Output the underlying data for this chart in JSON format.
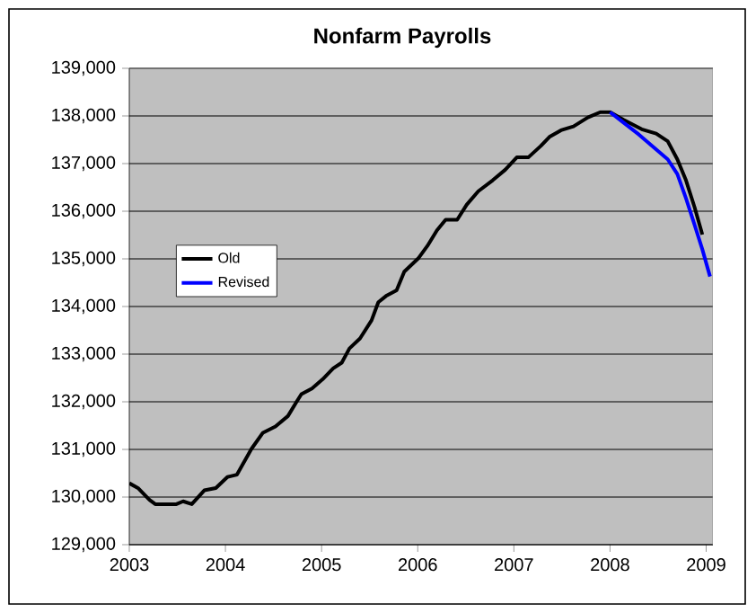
{
  "chart_data": {
    "type": "line",
    "title": "Nonfarm Payrolls",
    "xlim": [
      2003,
      2009.07
    ],
    "xticks": [
      2003,
      2004,
      2005,
      2006,
      2007,
      2008,
      2009
    ],
    "ylim": [
      129000,
      139000
    ],
    "yticks": [
      {
        "value": 129000,
        "label": "129,000"
      },
      {
        "value": 130000,
        "label": "130,000"
      },
      {
        "value": 131000,
        "label": "131,000"
      },
      {
        "value": 132000,
        "label": "132,000"
      },
      {
        "value": 133000,
        "label": "133,000"
      },
      {
        "value": 134000,
        "label": "134,000"
      },
      {
        "value": 135000,
        "label": "135,000"
      },
      {
        "value": 136000,
        "label": "136,000"
      },
      {
        "value": 137000,
        "label": "137,000"
      },
      {
        "value": 138000,
        "label": "138,000"
      },
      {
        "value": 139000,
        "label": "139,000"
      }
    ],
    "grid": "y",
    "legend": "left",
    "marker": "none",
    "line_style": "solid",
    "series": [
      {
        "name": "Old",
        "color": "#000000",
        "x": [
          2003.0,
          2003.09,
          2003.21,
          2003.27,
          2003.49,
          2003.56,
          2003.65,
          2003.78,
          2003.9,
          2004.02,
          2004.12,
          2004.27,
          2004.39,
          2004.52,
          2004.65,
          2004.74,
          2004.79,
          2004.9,
          2005.01,
          2005.12,
          2005.21,
          2005.29,
          2005.4,
          2005.52,
          2005.59,
          2005.67,
          2005.78,
          2005.86,
          2006.01,
          2006.1,
          2006.2,
          2006.29,
          2006.41,
          2006.51,
          2006.63,
          2006.78,
          2006.91,
          2007.03,
          2007.15,
          2007.28,
          2007.37,
          2007.49,
          2007.62,
          2007.77,
          2007.9,
          2008.0,
          2008.14,
          2008.33,
          2008.48,
          2008.6,
          2008.7,
          2008.79,
          2008.88,
          2008.96
        ],
        "values": [
          130290,
          130190,
          129940,
          129850,
          129850,
          129910,
          129850,
          130140,
          130190,
          130420,
          130470,
          131010,
          131350,
          131480,
          131700,
          132000,
          132160,
          132280,
          132470,
          132700,
          132820,
          133120,
          133330,
          133710,
          134090,
          134220,
          134340,
          134730,
          135020,
          135270,
          135600,
          135820,
          135820,
          136140,
          136420,
          136650,
          136870,
          137130,
          137130,
          137370,
          137560,
          137700,
          137780,
          137970,
          138080,
          138080,
          137920,
          137720,
          137630,
          137470,
          137090,
          136650,
          136080,
          135510
        ]
      },
      {
        "name": "Revised",
        "color": "#0000ff",
        "x": [
          2008.0,
          2008.14,
          2008.3,
          2008.45,
          2008.6,
          2008.7,
          2008.79,
          2008.88,
          2008.96,
          2009.04
        ],
        "values": [
          138080,
          137860,
          137610,
          137350,
          137090,
          136780,
          136270,
          135710,
          135200,
          134630
        ]
      }
    ]
  }
}
